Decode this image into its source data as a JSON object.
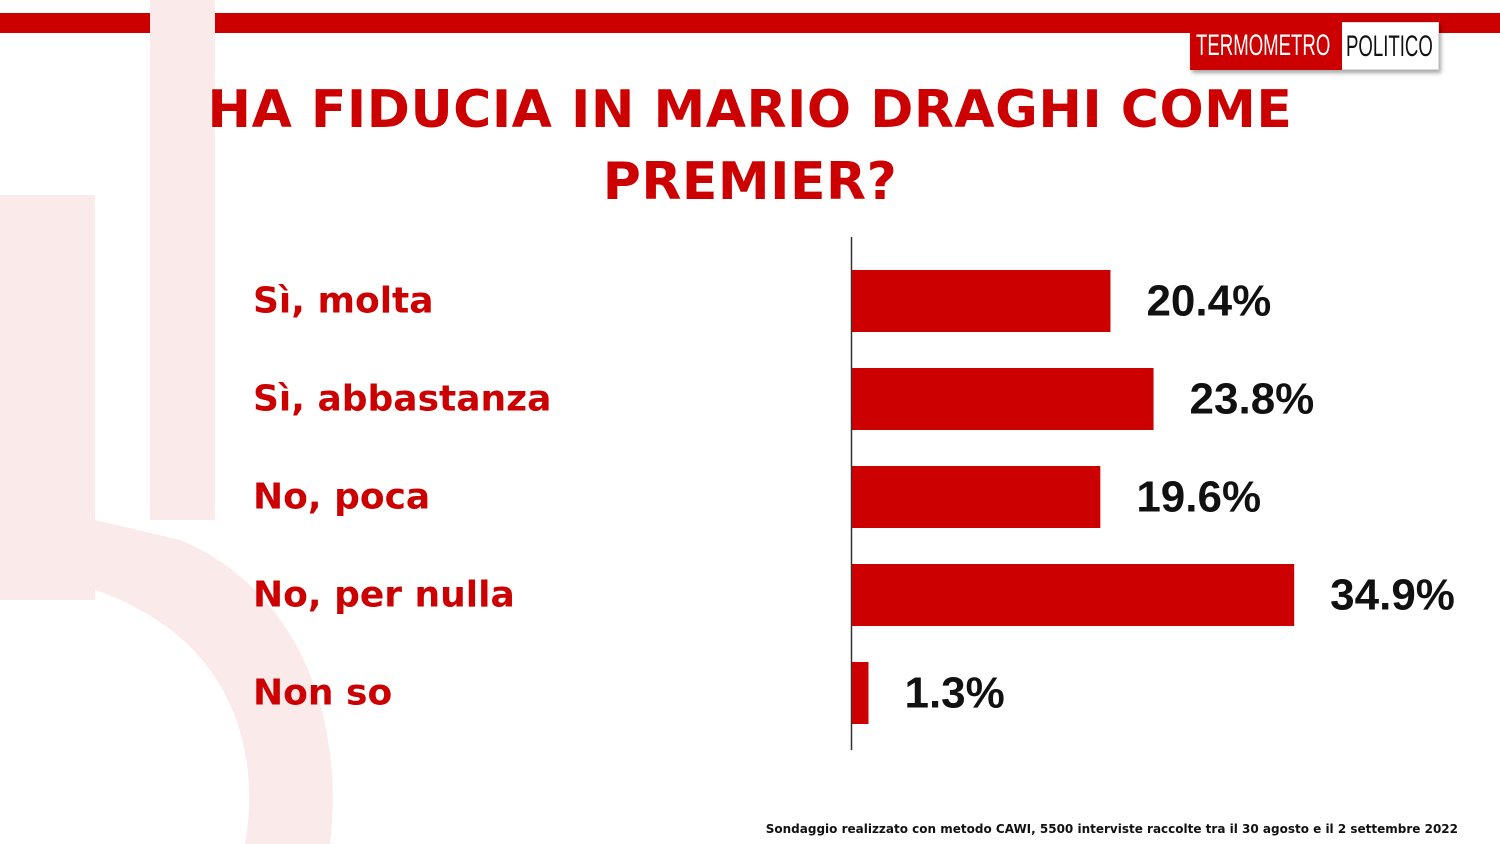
{
  "logo": {
    "part1": "TERMOMETRO",
    "part2": "POLITICO"
  },
  "title": "HA FIDUCIA IN MARIO DRAGHI COME PREMIER?",
  "footnote": "Sondaggio realizzato con metodo CAWI, 5500 interviste raccolte tra il 30 agosto  e il 2 settembre 2022",
  "colors": {
    "accent": "#cc0000",
    "value_text": "#111111",
    "background_mark": "#fbeaea"
  },
  "chart_data": {
    "type": "bar",
    "orientation": "horizontal",
    "categories": [
      "Sì, molta",
      "Sì, abbastanza",
      "No, poca",
      "No, per nulla",
      "Non so"
    ],
    "values": [
      20.4,
      23.8,
      19.6,
      34.9,
      1.3
    ],
    "value_labels": [
      "20.4%",
      "23.8%",
      "19.6%",
      "34.9%",
      "1.3%"
    ],
    "bar_color": "#cc0000",
    "xlim": [
      0,
      35
    ],
    "grid": false,
    "legend": "none"
  }
}
